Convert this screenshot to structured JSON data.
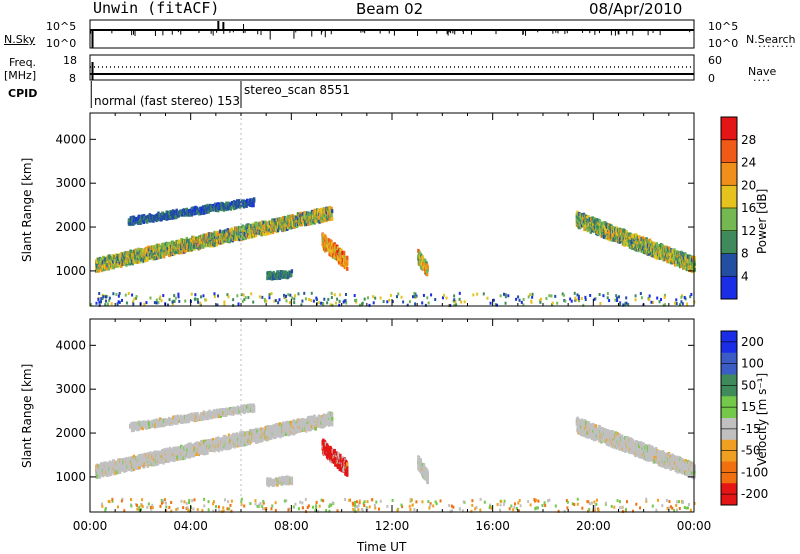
{
  "header": {
    "station": "Unwin (fitACF)",
    "beam": "Beam 02",
    "date": "08/Apr/2010"
  },
  "nsky_panel": {
    "left_label": "N.Sky",
    "right_label": "N.Search",
    "y_ticks_left": [
      "10^5",
      "10^0"
    ],
    "y_ticks_right": [
      "10^5",
      "10^0"
    ]
  },
  "freq_panel": {
    "left_label_line1": "Freq.",
    "left_label_line2": "[MHz]",
    "right_label": "Nave",
    "y_ticks_left": [
      "18",
      "8"
    ],
    "y_ticks_right": [
      "60",
      "0"
    ]
  },
  "cpid": {
    "label": "CPID",
    "segments": [
      {
        "text": "normal (fast stereo) 153",
        "start_hour": 0
      },
      {
        "text": "stereo_scan 8551",
        "start_hour": 6
      }
    ]
  },
  "chart_data": [
    {
      "type": "heatmap",
      "quantity": "Power",
      "colorbar_label": "Power [dB]",
      "colorbar_ticks": [
        4,
        8,
        12,
        16,
        20,
        24,
        28
      ],
      "colorbar_range": [
        0,
        32
      ],
      "colors": [
        "#1a2ee8",
        "#234fa3",
        "#3e8a5a",
        "#74b852",
        "#e6c21e",
        "#f0901a",
        "#ef5a16",
        "#e31515"
      ],
      "ylabel": "Slant Range [km]",
      "ylim": [
        200,
        4600
      ],
      "yticks": [
        1000,
        2000,
        3000,
        4000
      ],
      "xlim_hours": [
        0,
        24
      ],
      "features": [
        {
          "name": "dayside band",
          "start": 0.2,
          "end": 9.6,
          "r0": 1150,
          "r1": 2350,
          "width": 280,
          "value_min": 6,
          "value_max": 24
        },
        {
          "name": "upper echo",
          "start": 1.5,
          "end": 6.5,
          "r0": 2150,
          "r1": 2600,
          "width": 150,
          "value_min": 3,
          "value_max": 10
        },
        {
          "name": "burst",
          "start": 9.2,
          "end": 10.2,
          "r0": 1700,
          "r1": 1200,
          "width": 300,
          "value_min": 14,
          "value_max": 30
        },
        {
          "name": "small patch",
          "start": 13.0,
          "end": 13.4,
          "r0": 1350,
          "r1": 1000,
          "width": 250,
          "value_min": 10,
          "value_max": 26
        },
        {
          "name": "low echo",
          "start": 7.0,
          "end": 8.0,
          "r0": 900,
          "r1": 950,
          "width": 120,
          "value_min": 6,
          "value_max": 12
        },
        {
          "name": "evening band",
          "start": 19.3,
          "end": 24.0,
          "r0": 2200,
          "r1": 1150,
          "width": 320,
          "value_min": 6,
          "value_max": 22
        }
      ]
    },
    {
      "type": "heatmap",
      "quantity": "Velocity",
      "colorbar_label": "Velocity [m s⁻¹]",
      "colorbar_ticks": [
        "200",
        "100",
        "50",
        "15",
        "-15",
        "-50",
        "-100",
        "-200"
      ],
      "colors": [
        "#1a2ee8",
        "#3a5cc4",
        "#3e8a5a",
        "#74c84a",
        "#c0c0c0",
        "#f0a020",
        "#f07010",
        "#e31515"
      ],
      "ylabel": "Slant Range [km]",
      "ylim": [
        200,
        4600
      ],
      "yticks": [
        1000,
        2000,
        3000,
        4000
      ],
      "xlim_hours": [
        0,
        24
      ],
      "xticks": [
        "00:00",
        "04:00",
        "08:00",
        "12:00",
        "16:00",
        "20:00",
        "00:00"
      ],
      "xlabel": "Time UT"
    }
  ]
}
